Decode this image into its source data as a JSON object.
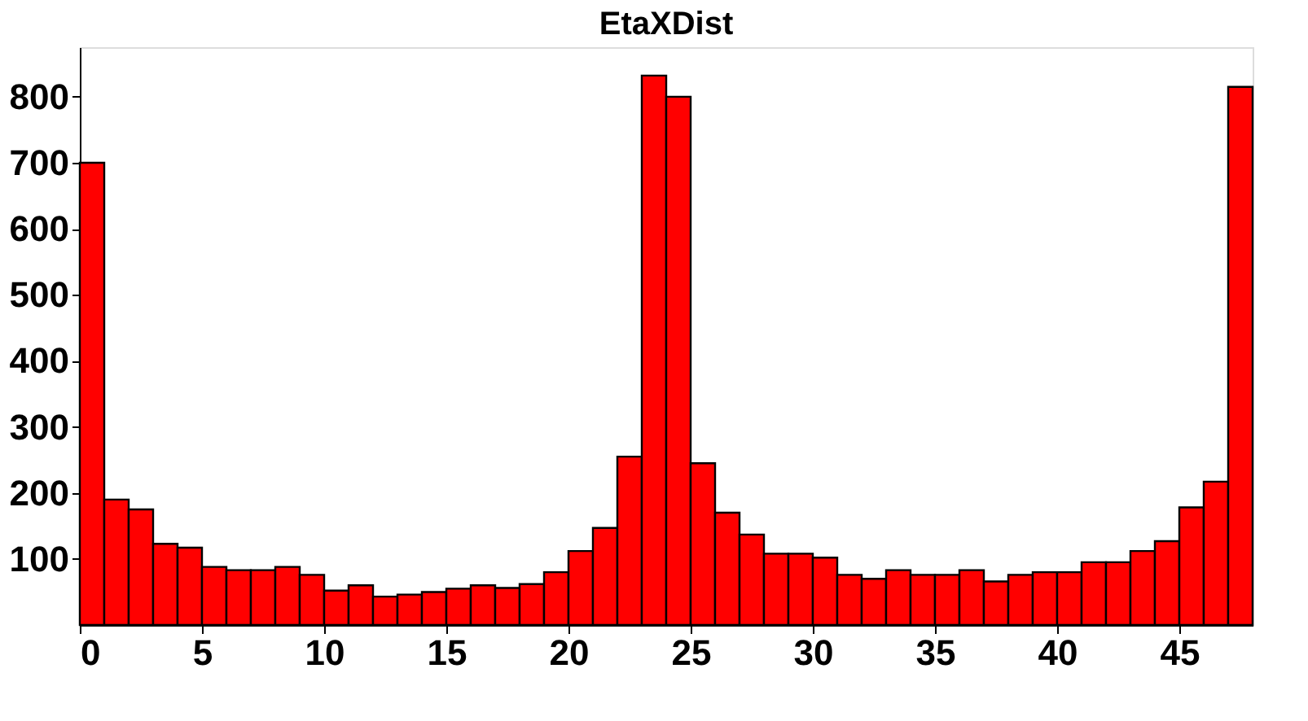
{
  "chart_data": {
    "type": "histogram",
    "title": "EtaXDist",
    "bins": [
      0,
      1,
      2,
      3,
      4,
      5,
      6,
      7,
      8,
      9,
      10,
      11,
      12,
      13,
      14,
      15,
      16,
      17,
      18,
      19,
      20,
      21,
      22,
      23,
      24,
      25,
      26,
      27,
      28,
      29,
      30,
      31,
      32,
      33,
      34,
      35,
      36,
      37,
      38,
      39,
      40,
      41,
      42,
      43,
      44,
      45,
      46,
      47,
      48
    ],
    "values": [
      700,
      190,
      175,
      123,
      117,
      88,
      83,
      83,
      88,
      76,
      52,
      60,
      43,
      46,
      50,
      55,
      60,
      56,
      62,
      80,
      112,
      147,
      255,
      832,
      800,
      245,
      170,
      137,
      108,
      108,
      102,
      76,
      70,
      83,
      76,
      76,
      83,
      66,
      76,
      80,
      80,
      95,
      95,
      112,
      127,
      178,
      217,
      815
    ],
    "color": "#ff0000",
    "xlim": [
      0,
      48
    ],
    "xticks": [
      0,
      5,
      10,
      15,
      20,
      25,
      30,
      35,
      40,
      45
    ],
    "ylim": [
      0,
      875
    ],
    "yticks": [
      100,
      200,
      300,
      400,
      500,
      600,
      700,
      800
    ],
    "grid": false
  }
}
